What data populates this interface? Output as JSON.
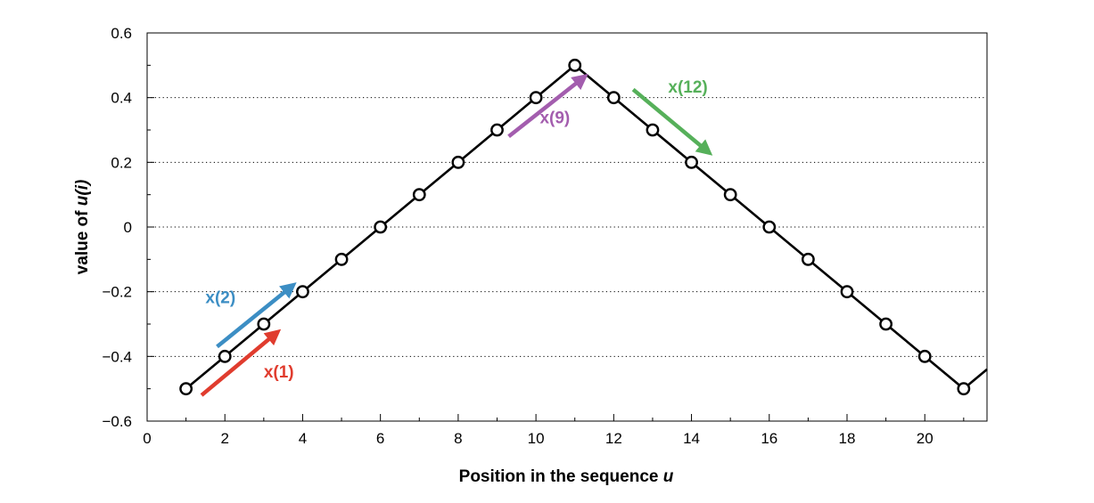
{
  "chart_data": {
    "type": "line",
    "title": "",
    "xlabel": "Position in the sequence",
    "xlabel_var": "u",
    "ylabel": "value of",
    "ylabel_var": "u(i)",
    "xlim": [
      0,
      21.6
    ],
    "ylim": [
      -0.6,
      0.6
    ],
    "xticks": [
      0,
      2,
      4,
      6,
      8,
      10,
      12,
      14,
      16,
      18,
      20
    ],
    "yticks": [
      -0.6,
      -0.4,
      -0.2,
      0,
      0.2,
      0.4,
      0.6
    ],
    "ytick_labels": [
      "−0.6",
      "−0.4",
      "−0.2",
      "0",
      "0.2",
      "0.4",
      "0.6"
    ],
    "grid": "dotted horizontal lines",
    "series": [
      {
        "x": [
          1,
          2,
          3,
          4,
          5,
          6,
          7,
          8,
          9,
          10,
          11,
          12,
          13,
          14,
          15,
          16,
          17,
          18,
          19,
          20,
          21,
          21.6
        ],
        "values": [
          -0.5,
          -0.4,
          -0.3,
          -0.2,
          -0.1,
          0,
          0.1,
          0.2,
          0.3,
          0.4,
          0.5,
          0.4,
          0.3,
          0.2,
          0.1,
          0,
          -0.1,
          -0.2,
          -0.3,
          -0.4,
          -0.5,
          -0.44
        ],
        "marker_count": 21,
        "color": "#000000"
      }
    ],
    "annotations": [
      {
        "text": "x(1)",
        "color": "#e03c2e",
        "from": [
          1.4,
          -0.52
        ],
        "to": [
          3.3,
          -0.33
        ],
        "label_at": [
          3.0,
          -0.465
        ]
      },
      {
        "text": "x(2)",
        "color": "#3c8ec4",
        "from": [
          1.8,
          -0.37
        ],
        "to": [
          3.7,
          -0.185
        ],
        "label_at": [
          1.5,
          -0.235
        ]
      },
      {
        "text": "x(9)",
        "color": "#a35dae",
        "from": [
          9.3,
          0.28
        ],
        "to": [
          11.2,
          0.46
        ],
        "label_at": [
          10.1,
          0.32
        ]
      },
      {
        "text": "x(12)",
        "color": "#56b05a",
        "from": [
          12.5,
          0.425
        ],
        "to": [
          14.4,
          0.235
        ],
        "label_at": [
          13.4,
          0.415
        ]
      }
    ]
  }
}
